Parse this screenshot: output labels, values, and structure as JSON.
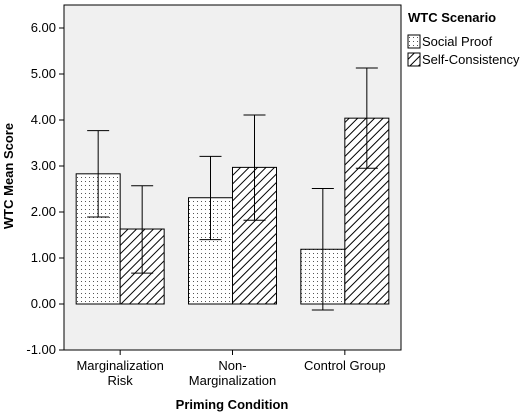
{
  "chart_data": {
    "type": "bar",
    "title": "",
    "xlabel": "Priming Condition",
    "ylabel": "WTC Mean Score",
    "ylim": [
      -1.0,
      6.5
    ],
    "yticks": [
      -1.0,
      0.0,
      1.0,
      2.0,
      3.0,
      4.0,
      5.0,
      6.0
    ],
    "ytick_labels": [
      "-1.00",
      "0.00",
      "1.00",
      "2.00",
      "3.00",
      "4.00",
      "5.00",
      "6.00"
    ],
    "categories": [
      [
        "Marginalization",
        "Risk"
      ],
      [
        "Non-",
        "Marginalization"
      ],
      [
        "Control Group"
      ]
    ],
    "legend": {
      "title": "WTC Scenario",
      "placement": "outside-right"
    },
    "series": [
      {
        "name": "Social Proof",
        "pattern": "dots",
        "values": [
          2.83,
          2.31,
          1.19
        ],
        "error_low": [
          1.89,
          1.4,
          -0.13
        ],
        "error_high": [
          3.77,
          3.21,
          2.51
        ]
      },
      {
        "name": "Self-Consistency",
        "pattern": "diagonal-hatch",
        "values": [
          1.63,
          2.97,
          4.04
        ],
        "error_low": [
          0.67,
          1.82,
          2.95
        ],
        "error_high": [
          2.57,
          4.11,
          5.13
        ]
      }
    ],
    "plot_background": "#f0f0f0",
    "grid": false
  }
}
